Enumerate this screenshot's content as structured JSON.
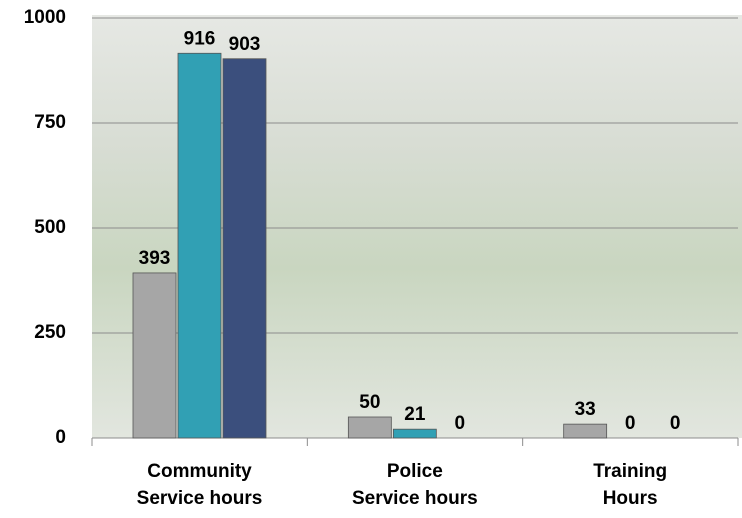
{
  "chart_data": {
    "type": "bar",
    "categories": [
      "Community\nService hours",
      "Police\nService hours",
      "Training\nHours"
    ],
    "series": [
      {
        "color": "#a6a6a6",
        "values": [
          393,
          50,
          33
        ]
      },
      {
        "color": "#31a0b4",
        "values": [
          916,
          21,
          0
        ]
      },
      {
        "color": "#3b4f7d",
        "values": [
          903,
          0,
          0
        ]
      }
    ],
    "ylim": [
      0,
      1000
    ],
    "yticks": [
      0,
      250,
      500,
      750,
      1000
    ],
    "grid": true
  }
}
